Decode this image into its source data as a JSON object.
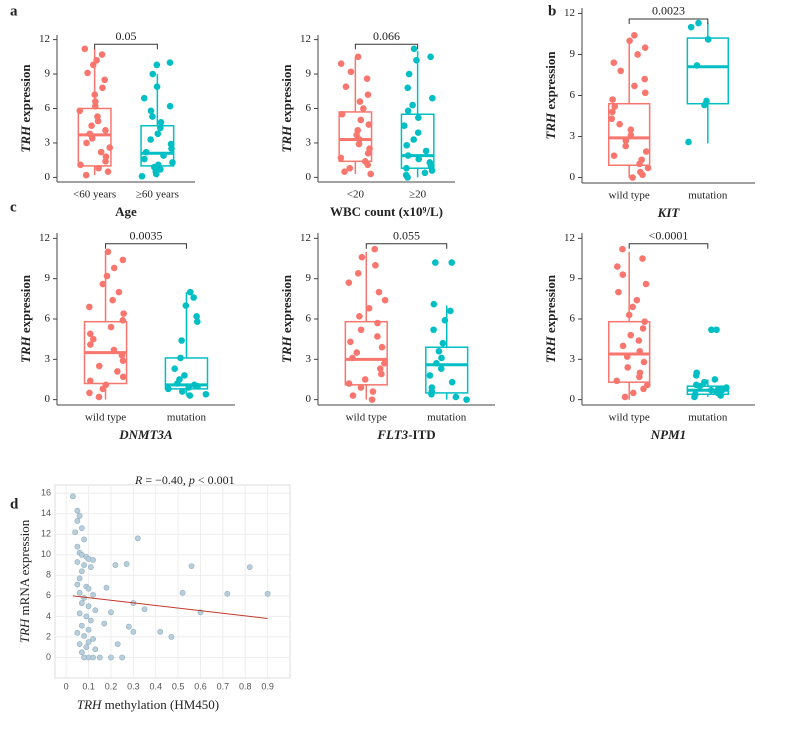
{
  "chart_data": [
    {
      "type": "box",
      "panel_label": "a",
      "ylabel_parts": [
        {
          "text": "TRH",
          "italic": true
        },
        {
          "text": " expression"
        }
      ],
      "xlabel_parts": [
        {
          "text": "Age"
        }
      ],
      "categories": [
        "<60 years",
        "≥60 years"
      ],
      "ylim": [
        -0.4,
        12.4
      ],
      "yticks": [
        0,
        3,
        6,
        9,
        12
      ],
      "annotation": "0.05",
      "boxes": [
        {
          "color": "#F8766D",
          "whisker_low": 0.2,
          "q1": 1.0,
          "median": 3.7,
          "q3": 6.0,
          "whisker_high": 11.2,
          "points": [
            11.2,
            10.7,
            10.2,
            9.8,
            9.1,
            8.5,
            7.8,
            7.2,
            6.6,
            6.2,
            5.8,
            5.3,
            4.9,
            4.5,
            4.1,
            3.8,
            3.4,
            3.0,
            2.6,
            2.2,
            1.8,
            1.4,
            1.1,
            0.8,
            0.5,
            0.2
          ]
        },
        {
          "color": "#00BFC4",
          "whisker_low": 0.0,
          "q1": 1.0,
          "median": 2.1,
          "q3": 4.5,
          "whisker_high": 9.0,
          "points": [
            10.0,
            9.8,
            9.0,
            7.9,
            6.9,
            6.2,
            5.8,
            5.3,
            4.8,
            4.3,
            3.8,
            3.3,
            2.9,
            2.5,
            2.2,
            1.9,
            1.6,
            1.3,
            1.1,
            0.9,
            0.7,
            0.5,
            0.3,
            0.1
          ]
        }
      ]
    },
    {
      "type": "box",
      "ylabel_parts": [
        {
          "text": "TRH",
          "italic": true
        },
        {
          "text": " expression"
        }
      ],
      "xlabel_parts": [
        {
          "text": "WBC count (x10⁹/L)"
        }
      ],
      "categories": [
        "<20",
        "≥20"
      ],
      "ylim": [
        -0.4,
        12.4
      ],
      "yticks": [
        0,
        3,
        6,
        9,
        12
      ],
      "annotation": "0.066",
      "boxes": [
        {
          "color": "#F8766D",
          "whisker_low": 0.3,
          "q1": 1.4,
          "median": 3.3,
          "q3": 5.7,
          "whisker_high": 10.5,
          "points": [
            10.5,
            9.9,
            9.2,
            8.6,
            7.9,
            7.2,
            6.6,
            6.0,
            5.5,
            5.0,
            4.6,
            4.1,
            3.7,
            3.3,
            2.9,
            2.5,
            2.1,
            1.7,
            1.4,
            1.1,
            0.8,
            0.5,
            0.3
          ]
        },
        {
          "color": "#00BFC4",
          "whisker_low": 0.0,
          "q1": 0.8,
          "median": 1.9,
          "q3": 5.5,
          "whisker_high": 11.0,
          "points": [
            11.2,
            10.5,
            10.2,
            9.0,
            7.8,
            6.9,
            6.3,
            5.8,
            5.2,
            4.5,
            3.9,
            3.3,
            2.8,
            2.3,
            1.9,
            1.6,
            1.3,
            1.0,
            0.8,
            0.6,
            0.4,
            0.2,
            0.0
          ]
        }
      ]
    },
    {
      "type": "box",
      "panel_label": "b",
      "ylabel_parts": [
        {
          "text": "TRH",
          "italic": true
        },
        {
          "text": " expression"
        }
      ],
      "xlabel_parts": [
        {
          "text": "KIT",
          "italic": true
        }
      ],
      "categories": [
        "wild type",
        "mutation"
      ],
      "ylim": [
        -0.4,
        12.4
      ],
      "yticks": [
        0,
        3,
        6,
        9,
        12
      ],
      "annotation": "0.0023",
      "boxes": [
        {
          "color": "#F8766D",
          "whisker_low": 0.0,
          "q1": 0.9,
          "median": 2.9,
          "q3": 5.4,
          "whisker_high": 10.2,
          "points": [
            10.4,
            10.0,
            9.5,
            9.0,
            8.4,
            7.8,
            7.2,
            6.7,
            6.2,
            5.7,
            5.2,
            4.8,
            4.3,
            3.9,
            3.5,
            3.1,
            2.7,
            2.3,
            1.9,
            1.6,
            1.3,
            1.0,
            0.7,
            0.4,
            0.2,
            0.0
          ]
        },
        {
          "color": "#00BFC4",
          "whisker_low": 2.5,
          "q1": 5.4,
          "median": 8.1,
          "q3": 10.2,
          "whisker_high": 11.3,
          "points": [
            11.3,
            11.0,
            10.1,
            8.2,
            5.6,
            5.3,
            2.6
          ]
        }
      ]
    },
    {
      "type": "box",
      "panel_label": "c",
      "ylabel_parts": [
        {
          "text": "TRH",
          "italic": true
        },
        {
          "text": " expression"
        }
      ],
      "xlabel_parts": [
        {
          "text": "DNMT3A",
          "italic": true
        }
      ],
      "categories": [
        "wild type",
        "mutation"
      ],
      "ylim": [
        -0.4,
        12.4
      ],
      "yticks": [
        0,
        3,
        6,
        9,
        12
      ],
      "annotation": "0.0035",
      "boxes": [
        {
          "color": "#F8766D",
          "whisker_low": 0.0,
          "q1": 1.2,
          "median": 3.5,
          "q3": 5.8,
          "whisker_high": 11.0,
          "points": [
            11.0,
            10.4,
            9.8,
            9.2,
            8.6,
            8.0,
            7.4,
            6.9,
            6.4,
            5.9,
            5.4,
            4.9,
            4.5,
            4.1,
            3.7,
            3.3,
            2.9,
            2.5,
            2.1,
            1.7,
            1.4,
            1.1,
            0.8,
            0.5,
            0.2
          ]
        },
        {
          "color": "#00BFC4",
          "whisker_low": 0.3,
          "q1": 0.8,
          "median": 1.1,
          "q3": 3.1,
          "whisker_high": 8.0,
          "points": [
            8.0,
            7.6,
            7.0,
            6.2,
            5.8,
            4.4,
            3.1,
            2.3,
            1.8,
            1.5,
            1.2,
            1.1,
            1.0,
            0.9,
            0.8,
            0.6,
            0.4,
            0.3
          ]
        }
      ]
    },
    {
      "type": "box",
      "ylabel_parts": [
        {
          "text": "TRH",
          "italic": true
        },
        {
          "text": " expression"
        }
      ],
      "xlabel_parts": [
        {
          "text": "FLT3",
          "italic": true
        },
        {
          "text": "-ITD"
        }
      ],
      "categories": [
        "wild type",
        "mutation"
      ],
      "ylim": [
        -0.4,
        12.4
      ],
      "yticks": [
        0,
        3,
        6,
        9,
        12
      ],
      "annotation": "0.055",
      "boxes": [
        {
          "color": "#F8766D",
          "whisker_low": 0.0,
          "q1": 1.1,
          "median": 3.0,
          "q3": 5.8,
          "whisker_high": 11.0,
          "points": [
            11.2,
            10.6,
            10.0,
            9.4,
            8.7,
            8.0,
            7.4,
            6.8,
            6.2,
            5.7,
            5.2,
            4.7,
            4.3,
            3.9,
            3.5,
            3.1,
            2.7,
            2.3,
            1.9,
            1.5,
            1.2,
            0.9,
            0.6,
            0.3,
            0.0
          ]
        },
        {
          "color": "#00BFC4",
          "whisker_low": 0.0,
          "q1": 0.5,
          "median": 2.6,
          "q3": 3.9,
          "whisker_high": 7.0,
          "points": [
            10.2,
            10.2,
            7.1,
            6.6,
            5.9,
            5.2,
            4.2,
            3.6,
            3.1,
            2.7,
            2.3,
            1.8,
            1.3,
            0.9,
            0.6,
            0.4,
            0.2,
            0.0
          ]
        }
      ]
    },
    {
      "type": "box",
      "ylabel_parts": [
        {
          "text": "TRH",
          "italic": true
        },
        {
          "text": " expression"
        }
      ],
      "xlabel_parts": [
        {
          "text": "NPM1",
          "italic": true
        }
      ],
      "categories": [
        "wild type",
        "mutation"
      ],
      "ylim": [
        -0.4,
        12.4
      ],
      "yticks": [
        0,
        3,
        6,
        9,
        12
      ],
      "annotation": "<0.0001",
      "boxes": [
        {
          "color": "#F8766D",
          "whisker_low": 0.0,
          "q1": 1.3,
          "median": 3.4,
          "q3": 5.8,
          "whisker_high": 11.0,
          "points": [
            11.2,
            10.5,
            9.9,
            9.3,
            8.6,
            8.0,
            7.4,
            6.9,
            6.3,
            5.8,
            5.3,
            4.8,
            4.4,
            4.0,
            3.6,
            3.2,
            2.8,
            2.4,
            2.0,
            1.7,
            1.4,
            1.1,
            0.8,
            0.5,
            0.2
          ]
        },
        {
          "color": "#00BFC4",
          "whisker_low": 0.2,
          "q1": 0.4,
          "median": 0.7,
          "q3": 1.0,
          "whisker_high": 1.5,
          "points": [
            5.2,
            5.2,
            2.0,
            1.8,
            1.5,
            1.3,
            1.1,
            1.0,
            0.9,
            0.8,
            0.7,
            0.7,
            0.6,
            0.5,
            0.4,
            0.3,
            0.2
          ]
        }
      ]
    },
    {
      "type": "scatter",
      "panel_label": "d",
      "annotation_parts": [
        {
          "text": "R",
          "italic": true
        },
        {
          "text": " = −0.40, "
        },
        {
          "text": "p",
          "italic": true
        },
        {
          "text": " < 0.001"
        }
      ],
      "ylabel_parts": [
        {
          "text": "TRH",
          "italic": true
        },
        {
          "text": "  mRNA expression"
        }
      ],
      "xlabel_parts": [
        {
          "text": "TRH",
          "italic": true
        },
        {
          "text": " methylation (HM450)"
        }
      ],
      "xlim": [
        -0.05,
        1.0
      ],
      "ylim": [
        -2,
        16.8
      ],
      "xticks": [
        0,
        0.1,
        0.2,
        0.3,
        0.4,
        0.5,
        0.6,
        0.7,
        0.8,
        0.9
      ],
      "yticks": [
        0,
        2,
        4,
        6,
        8,
        10,
        12,
        14,
        16
      ],
      "grid": true,
      "color": "#b7cfdc",
      "x": [
        0.03,
        0.05,
        0.06,
        0.05,
        0.07,
        0.04,
        0.08,
        0.05,
        0.06,
        0.07,
        0.09,
        0.1,
        0.12,
        0.05,
        0.08,
        0.11,
        0.07,
        0.06,
        0.05,
        0.09,
        0.1,
        0.06,
        0.12,
        0.08,
        0.07,
        0.1,
        0.13,
        0.06,
        0.09,
        0.11,
        0.07,
        0.1,
        0.05,
        0.08,
        0.12,
        0.1,
        0.06,
        0.09,
        0.13,
        0.07,
        0.1,
        0.08,
        0.12,
        0.15,
        0.2,
        0.25,
        0.22,
        0.27,
        0.32,
        0.3,
        0.35,
        0.2,
        0.23,
        0.3,
        0.42,
        0.47,
        0.52,
        0.56,
        0.6,
        0.72,
        0.82,
        0.9,
        0.17,
        0.28,
        0.18
      ],
      "y": [
        15.7,
        14.3,
        13.8,
        13.3,
        12.6,
        12.2,
        11.5,
        10.8,
        10.2,
        10.0,
        9.8,
        9.6,
        9.5,
        9.3,
        9.0,
        8.8,
        8.4,
        7.7,
        7.1,
        6.9,
        6.7,
        6.3,
        6.1,
        5.8,
        5.3,
        5.0,
        4.6,
        4.3,
        4.0,
        3.6,
        3.1,
        2.7,
        2.4,
        2.1,
        1.8,
        1.5,
        1.3,
        1.0,
        0.8,
        0.5,
        0.0,
        0.0,
        0.0,
        0.0,
        0.0,
        0.0,
        9.0,
        9.1,
        11.6,
        5.3,
        4.7,
        4.4,
        1.3,
        2.5,
        2.5,
        2.0,
        6.3,
        8.9,
        4.4,
        6.2,
        8.8,
        6.2,
        3.3,
        3.0,
        6.8
      ],
      "trend": {
        "color": "#c0392b",
        "x": [
          0.03,
          0.9
        ],
        "y": [
          6.0,
          3.8
        ]
      }
    }
  ]
}
